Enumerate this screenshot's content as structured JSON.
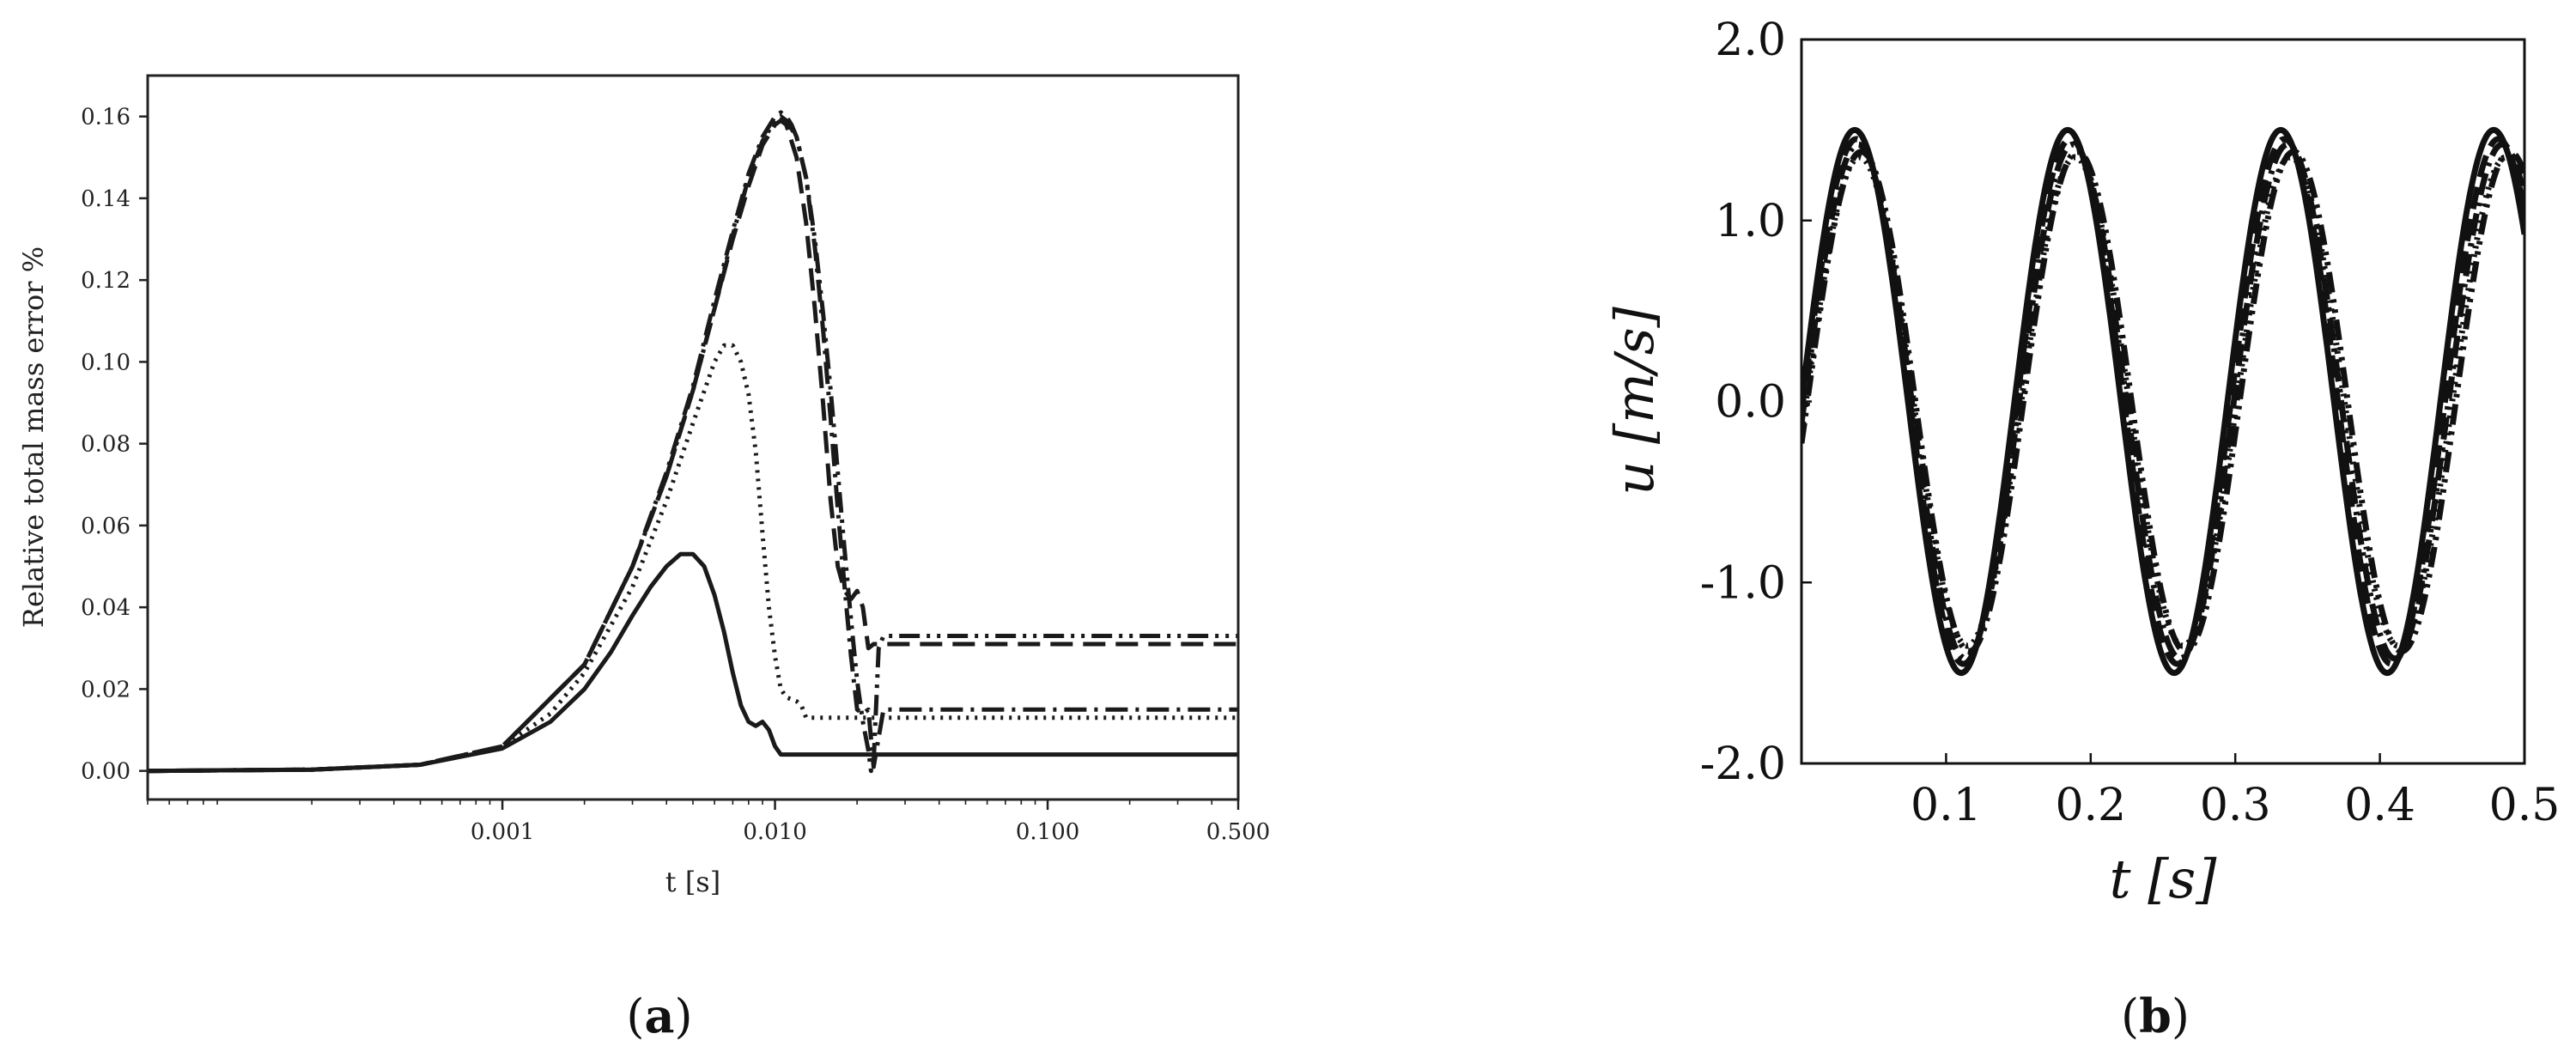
{
  "chart_data": [
    {
      "type": "line",
      "panel_label": {
        "open": "(",
        "letter": "a",
        "close": ")"
      },
      "xlabel": "t [s]",
      "ylabel": "Relative total mass error %",
      "xscale": "log",
      "xlim": [
        5e-05,
        0.5
      ],
      "ylim": [
        -0.007,
        0.17
      ],
      "xticks": [
        {
          "value": 0.001,
          "label": "0.001"
        },
        {
          "value": 0.01,
          "label": "0.010"
        },
        {
          "value": 0.1,
          "label": "0.100"
        },
        {
          "value": 0.5,
          "label": "0.500"
        }
      ],
      "yticks": [
        {
          "value": 0.0,
          "label": "0.00"
        },
        {
          "value": 0.02,
          "label": "0.02"
        },
        {
          "value": 0.04,
          "label": "0.04"
        },
        {
          "value": 0.06,
          "label": "0.06"
        },
        {
          "value": 0.08,
          "label": "0.08"
        },
        {
          "value": 0.1,
          "label": "0.10"
        },
        {
          "value": 0.12,
          "label": "0.12"
        },
        {
          "value": 0.14,
          "label": "0.14"
        },
        {
          "value": 0.16,
          "label": "0.16"
        }
      ],
      "grid": false,
      "series": [
        {
          "style": "solid",
          "x": [
            5e-05,
            0.0002,
            0.0005,
            0.001,
            0.0015,
            0.002,
            0.0025,
            0.003,
            0.0035,
            0.004,
            0.0045,
            0.005,
            0.0055,
            0.006,
            0.0065,
            0.007,
            0.0075,
            0.008,
            0.0085,
            0.009,
            0.0095,
            0.01,
            0.0105,
            0.011,
            0.02,
            0.05,
            0.1,
            0.5
          ],
          "y": [
            0.0,
            0.0003,
            0.0015,
            0.0055,
            0.012,
            0.02,
            0.029,
            0.038,
            0.045,
            0.05,
            0.053,
            0.053,
            0.05,
            0.043,
            0.034,
            0.024,
            0.016,
            0.012,
            0.011,
            0.012,
            0.01,
            0.006,
            0.004,
            0.004,
            0.004,
            0.004,
            0.004,
            0.004
          ]
        },
        {
          "style": "dotted",
          "x": [
            5e-05,
            0.0002,
            0.0005,
            0.001,
            0.0015,
            0.002,
            0.003,
            0.004,
            0.005,
            0.006,
            0.0065,
            0.007,
            0.0075,
            0.008,
            0.0085,
            0.009,
            0.0095,
            0.01,
            0.0105,
            0.011,
            0.012,
            0.0125,
            0.013,
            0.014,
            0.05,
            0.5
          ],
          "y": [
            0.0,
            0.0003,
            0.0015,
            0.006,
            0.014,
            0.024,
            0.045,
            0.066,
            0.085,
            0.1,
            0.104,
            0.104,
            0.1,
            0.092,
            0.078,
            0.058,
            0.04,
            0.028,
            0.02,
            0.018,
            0.017,
            0.016,
            0.013,
            0.013,
            0.013,
            0.013
          ]
        },
        {
          "style": "dashed",
          "x": [
            5e-05,
            0.0002,
            0.0005,
            0.001,
            0.002,
            0.003,
            0.004,
            0.005,
            0.006,
            0.007,
            0.008,
            0.009,
            0.01,
            0.0105,
            0.011,
            0.012,
            0.013,
            0.014,
            0.015,
            0.016,
            0.017,
            0.018,
            0.019,
            0.02,
            0.021,
            0.022,
            0.023,
            0.024,
            0.025,
            0.03,
            0.1,
            0.5
          ],
          "y": [
            0.0,
            0.0003,
            0.0015,
            0.006,
            0.026,
            0.05,
            0.072,
            0.093,
            0.113,
            0.13,
            0.143,
            0.153,
            0.158,
            0.159,
            0.158,
            0.15,
            0.134,
            0.113,
            0.09,
            0.066,
            0.05,
            0.044,
            0.042,
            0.044,
            0.04,
            0.03,
            0.031,
            0.031,
            0.031,
            0.031,
            0.031,
            0.031
          ]
        },
        {
          "style": "dashdot",
          "x": [
            5e-05,
            0.0002,
            0.0005,
            0.001,
            0.002,
            0.003,
            0.004,
            0.005,
            0.006,
            0.007,
            0.008,
            0.009,
            0.01,
            0.0105,
            0.011,
            0.0115,
            0.012,
            0.013,
            0.014,
            0.015,
            0.016,
            0.017,
            0.018,
            0.019,
            0.02,
            0.021,
            0.022,
            0.023,
            0.025,
            0.05,
            0.5
          ],
          "y": [
            0.0,
            0.0003,
            0.0015,
            0.006,
            0.026,
            0.05,
            0.073,
            0.094,
            0.115,
            0.132,
            0.146,
            0.155,
            0.16,
            0.161,
            0.16,
            0.158,
            0.155,
            0.145,
            0.128,
            0.108,
            0.086,
            0.064,
            0.045,
            0.028,
            0.015,
            0.014,
            0.015,
            0.001,
            0.015,
            0.015,
            0.015
          ]
        },
        {
          "style": "dashdotdot",
          "x": [
            5e-05,
            0.0002,
            0.0005,
            0.001,
            0.002,
            0.003,
            0.004,
            0.005,
            0.006,
            0.007,
            0.008,
            0.009,
            0.01,
            0.0105,
            0.011,
            0.012,
            0.013,
            0.014,
            0.015,
            0.016,
            0.017,
            0.018,
            0.019,
            0.02,
            0.021,
            0.022,
            0.0225,
            0.023,
            0.024,
            0.025,
            0.03,
            0.1,
            0.5
          ],
          "y": [
            0.0,
            0.0003,
            0.0015,
            0.006,
            0.026,
            0.05,
            0.072,
            0.093,
            0.113,
            0.131,
            0.145,
            0.154,
            0.159,
            0.16,
            0.159,
            0.155,
            0.145,
            0.13,
            0.112,
            0.093,
            0.073,
            0.054,
            0.037,
            0.022,
            0.012,
            0.005,
            0.0,
            0.002,
            0.03,
            0.033,
            0.033,
            0.033,
            0.033
          ]
        }
      ]
    },
    {
      "type": "line",
      "panel_label": {
        "open": "(",
        "letter": "b",
        "close": ")"
      },
      "xlabel": "t [s]",
      "ylabel": "u [m/s]",
      "xlim": [
        0.0,
        0.5
      ],
      "ylim": [
        -2.0,
        2.0
      ],
      "xticks": [
        {
          "value": 0.1,
          "label": "0.1"
        },
        {
          "value": 0.2,
          "label": "0.2"
        },
        {
          "value": 0.3,
          "label": "0.3"
        },
        {
          "value": 0.4,
          "label": "0.4"
        },
        {
          "value": 0.5,
          "label": "0.5"
        }
      ],
      "yticks": [
        {
          "value": -2.0,
          "label": "-2.0"
        },
        {
          "value": -1.0,
          "label": "-1.0"
        },
        {
          "value": 0.0,
          "label": "0.0"
        },
        {
          "value": 1.0,
          "label": "1.0"
        },
        {
          "value": 2.0,
          "label": "2.0"
        }
      ],
      "grid": false,
      "series": [
        {
          "style": "solid",
          "amplitude": 1.5,
          "period": 0.1473,
          "phase_shift": 0.0
        },
        {
          "style": "dashed",
          "amplitude": 1.45,
          "period": 0.148,
          "phase_shift": 0.001
        },
        {
          "style": "dashdot",
          "amplitude": 1.42,
          "period": 0.1485,
          "phase_shift": 0.002
        },
        {
          "style": "dotted",
          "amplitude": 1.35,
          "period": 0.149,
          "phase_shift": 0.003
        },
        {
          "style": "dashdotdot",
          "amplitude": 1.38,
          "period": 0.1495,
          "phase_shift": 0.004
        }
      ]
    }
  ]
}
